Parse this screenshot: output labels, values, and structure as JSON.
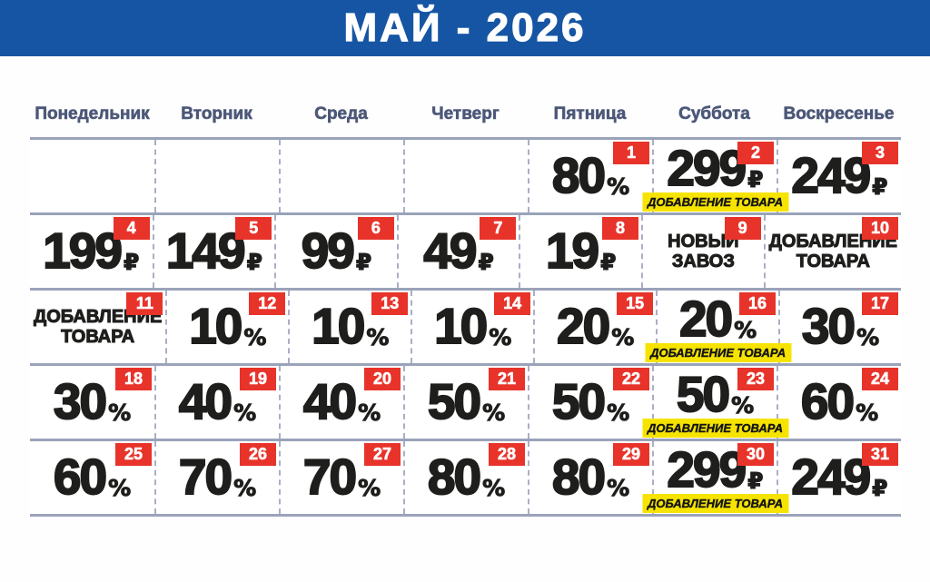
{
  "title": "МАЙ - 2026",
  "weekdays": [
    "Понедельник",
    "Вторник",
    "Среда",
    "Четверг",
    "Пятница",
    "Суббота",
    "Воскресенье"
  ],
  "colors": {
    "header_bg": "#1655a3",
    "title_text": "#ffffff",
    "weekday_text": "#4d5878",
    "badge_bg": "#e8332a",
    "badge_text": "#ffffff",
    "value_text": "#1e1e1c",
    "highlight_bg": "#f6e400",
    "grid_line": "#9aa3ba",
    "dash_line": "#a9afc4"
  },
  "weeks": [
    [
      null,
      null,
      null,
      null,
      {
        "day": 1,
        "value": "80",
        "unit": "%"
      },
      {
        "day": 2,
        "value": "299",
        "unit": "₽",
        "note": "ДОБАВЛЕНИЕ ТОВАРА"
      },
      {
        "day": 3,
        "value": "249",
        "unit": "₽"
      }
    ],
    [
      {
        "day": 4,
        "value": "199",
        "unit": "₽"
      },
      {
        "day": 5,
        "value": "149",
        "unit": "₽"
      },
      {
        "day": 6,
        "value": "99",
        "unit": "₽"
      },
      {
        "day": 7,
        "value": "49",
        "unit": "₽"
      },
      {
        "day": 8,
        "value": "19",
        "unit": "₽"
      },
      {
        "day": 9,
        "text": "НОВЫЙ ЗАВОЗ"
      },
      {
        "day": 10,
        "text": "ДОБАВЛЕНИЕ ТОВАРА"
      }
    ],
    [
      {
        "day": 11,
        "text": "ДОБАВЛЕНИЕ ТОВАРА"
      },
      {
        "day": 12,
        "value": "10",
        "unit": "%"
      },
      {
        "day": 13,
        "value": "10",
        "unit": "%"
      },
      {
        "day": 14,
        "value": "10",
        "unit": "%"
      },
      {
        "day": 15,
        "value": "20",
        "unit": "%"
      },
      {
        "day": 16,
        "value": "20",
        "unit": "%",
        "note": "ДОБАВЛЕНИЕ ТОВАРА"
      },
      {
        "day": 17,
        "value": "30",
        "unit": "%"
      }
    ],
    [
      {
        "day": 18,
        "value": "30",
        "unit": "%"
      },
      {
        "day": 19,
        "value": "40",
        "unit": "%"
      },
      {
        "day": 20,
        "value": "40",
        "unit": "%"
      },
      {
        "day": 21,
        "value": "50",
        "unit": "%"
      },
      {
        "day": 22,
        "value": "50",
        "unit": "%"
      },
      {
        "day": 23,
        "value": "50",
        "unit": "%",
        "note": "ДОБАВЛЕНИЕ ТОВАРА"
      },
      {
        "day": 24,
        "value": "60",
        "unit": "%"
      }
    ],
    [
      {
        "day": 25,
        "value": "60",
        "unit": "%"
      },
      {
        "day": 26,
        "value": "70",
        "unit": "%"
      },
      {
        "day": 27,
        "value": "70",
        "unit": "%"
      },
      {
        "day": 28,
        "value": "80",
        "unit": "%"
      },
      {
        "day": 29,
        "value": "80",
        "unit": "%"
      },
      {
        "day": 30,
        "value": "299",
        "unit": "₽",
        "note": "ДОБАВЛЕНИЕ ТОВАРА"
      },
      {
        "day": 31,
        "value": "249",
        "unit": "₽"
      }
    ]
  ]
}
